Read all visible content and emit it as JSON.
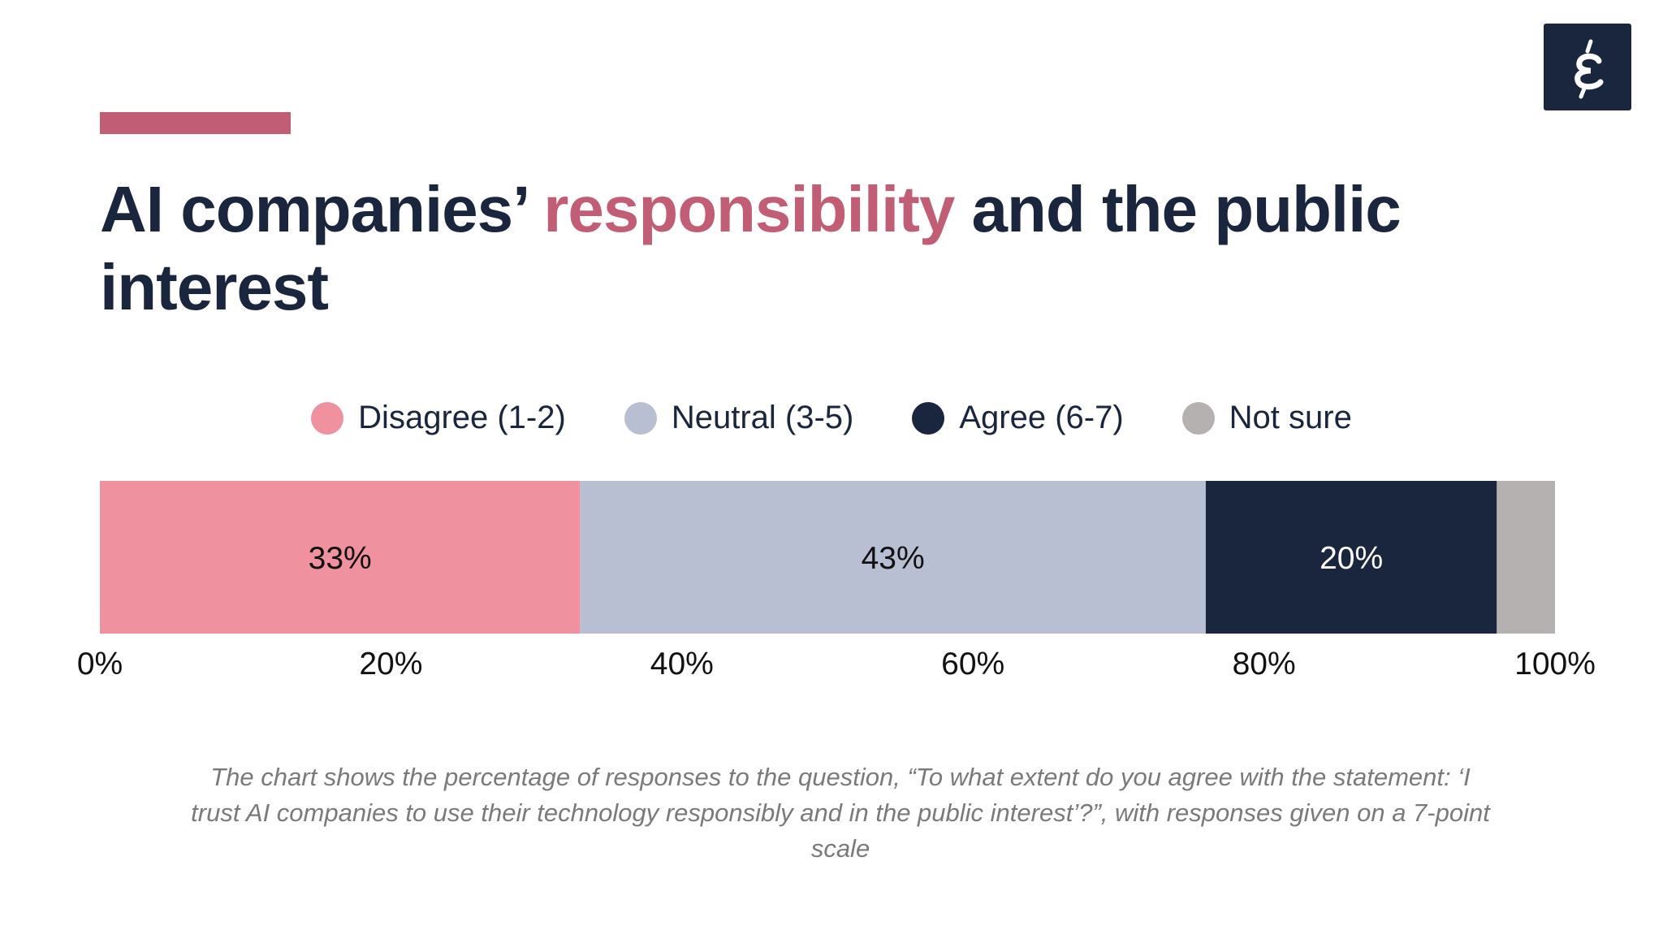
{
  "title": {
    "part1": "AI companies’ ",
    "highlight": "responsibility",
    "part2": " and the public interest"
  },
  "logo": {
    "text": "έ",
    "icon": "greek-epsilon-logo"
  },
  "colors": {
    "accent": "#c15e76",
    "dark": "#1a263d"
  },
  "chart_data": {
    "type": "bar",
    "orientation": "horizontal-stacked-100",
    "series": [
      {
        "name": "Disagree (1-2)",
        "value": 33,
        "label": "33%",
        "color": "#f0919f"
      },
      {
        "name": "Neutral (3-5)",
        "value": 43,
        "label": "43%",
        "color": "#b9bfd3"
      },
      {
        "name": "Agree (6-7)",
        "value": 20,
        "label": "20%",
        "color": "#1a263d"
      },
      {
        "name": "Not sure",
        "value": 4,
        "label": "",
        "color": "#b5b1b0"
      }
    ],
    "xlim": [
      0,
      100
    ],
    "x_ticks": [
      "0%",
      "20%",
      "40%",
      "60%",
      "80%",
      "100%"
    ],
    "legend_position": "top",
    "grid": false
  },
  "caption": "The chart shows the percentage of responses to the question, “To what extent do you agree with the statement: ‘I trust AI companies to use their technology responsibly and in the public interest’?”, with responses given on a 7-point scale"
}
